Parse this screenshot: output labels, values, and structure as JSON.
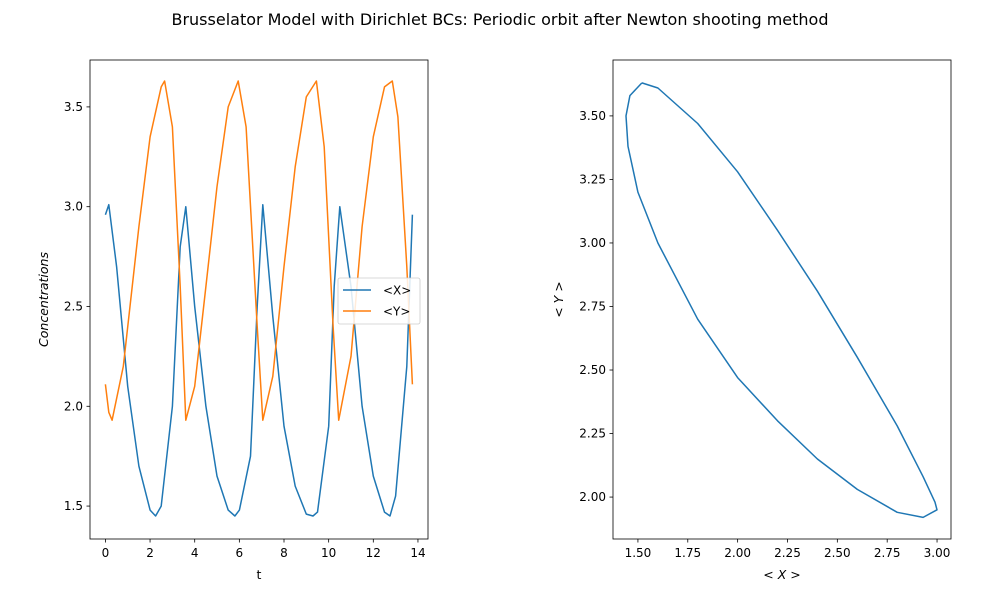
{
  "figure": {
    "suptitle": "Brusselator Model with Dirichlet BCs: Periodic orbit after Newton shooting method"
  },
  "colors": {
    "x_series": "#1f77b4",
    "y_series": "#ff7f0e",
    "axes": "#000000"
  },
  "chart_data": [
    {
      "type": "line",
      "title": "",
      "xlabel": "t",
      "ylabel": "Concentrations",
      "xlim": [
        -0.69,
        14.45
      ],
      "ylim": [
        1.335,
        3.735
      ],
      "xticks": [
        0,
        2,
        4,
        6,
        8,
        10,
        12,
        14
      ],
      "xtick_labels": [
        "0",
        "2",
        "4",
        "6",
        "8",
        "10",
        "12",
        "14"
      ],
      "yticks": [
        1.5,
        2.0,
        2.5,
        3.0,
        3.5
      ],
      "ytick_labels": [
        "1.5",
        "2.0",
        "2.5",
        "3.0",
        "3.5"
      ],
      "grid": false,
      "legend_placement": "center-right",
      "legend": [
        "<X>",
        "<Y>"
      ],
      "series": [
        {
          "name": "<X>",
          "color": "#1f77b4",
          "x": [
            0.0,
            0.15,
            0.5,
            1.0,
            1.5,
            2.0,
            2.25,
            2.5,
            3.0,
            3.35,
            3.6,
            4.0,
            4.5,
            5.0,
            5.5,
            5.8,
            6.0,
            6.5,
            6.8,
            7.05,
            7.5,
            8.0,
            8.5,
            9.0,
            9.3,
            9.5,
            10.0,
            10.25,
            10.5,
            11.0,
            11.5,
            12.0,
            12.5,
            12.75,
            13.0,
            13.5,
            13.75
          ],
          "y": [
            2.96,
            3.01,
            2.7,
            2.1,
            1.7,
            1.48,
            1.45,
            1.5,
            2.0,
            2.8,
            3.0,
            2.5,
            2.0,
            1.65,
            1.48,
            1.45,
            1.48,
            1.75,
            2.5,
            3.01,
            2.45,
            1.9,
            1.6,
            1.46,
            1.45,
            1.47,
            1.9,
            2.6,
            3.0,
            2.6,
            2.0,
            1.65,
            1.47,
            1.45,
            1.55,
            2.2,
            2.96
          ]
        },
        {
          "name": "<Y>",
          "color": "#ff7f0e",
          "x": [
            0.0,
            0.15,
            0.3,
            0.8,
            1.5,
            2.0,
            2.5,
            2.65,
            3.0,
            3.35,
            3.6,
            4.0,
            4.5,
            5.0,
            5.5,
            5.95,
            6.3,
            6.8,
            7.05,
            7.5,
            8.0,
            8.5,
            9.0,
            9.45,
            9.8,
            10.2,
            10.45,
            11.0,
            11.5,
            12.0,
            12.5,
            12.85,
            13.1,
            13.5,
            13.75
          ],
          "y": [
            2.11,
            1.97,
            1.93,
            2.2,
            2.9,
            3.35,
            3.6,
            3.63,
            3.4,
            2.6,
            1.93,
            2.1,
            2.6,
            3.1,
            3.5,
            3.63,
            3.4,
            2.4,
            1.93,
            2.15,
            2.7,
            3.2,
            3.55,
            3.63,
            3.3,
            2.4,
            1.93,
            2.25,
            2.9,
            3.35,
            3.6,
            3.63,
            3.45,
            2.7,
            2.11
          ]
        }
      ]
    },
    {
      "type": "line",
      "title": "",
      "xlabel": "< X >",
      "ylabel": "< Y >",
      "xlim": [
        1.375,
        3.07
      ],
      "ylim": [
        1.835,
        3.72
      ],
      "xticks": [
        1.5,
        1.75,
        2.0,
        2.25,
        2.5,
        2.75,
        3.0
      ],
      "xtick_labels": [
        "1.50",
        "1.75",
        "2.00",
        "2.25",
        "2.50",
        "2.75",
        "3.00"
      ],
      "yticks": [
        2.0,
        2.25,
        2.5,
        2.75,
        3.0,
        3.25,
        3.5
      ],
      "ytick_labels": [
        "2.00",
        "2.25",
        "2.50",
        "2.75",
        "3.00",
        "3.25",
        "3.50"
      ],
      "grid": false,
      "series": [
        {
          "color": "#1f77b4",
          "x": [
            1.52,
            1.6,
            1.8,
            2.0,
            2.2,
            2.4,
            2.6,
            2.8,
            2.93,
            2.99,
            3.0,
            2.93,
            2.8,
            2.6,
            2.4,
            2.2,
            2.0,
            1.8,
            1.6,
            1.5,
            1.45,
            1.44,
            1.46,
            1.52
          ],
          "y": [
            3.63,
            3.61,
            3.47,
            3.28,
            3.05,
            2.81,
            2.55,
            2.28,
            2.08,
            1.98,
            1.95,
            1.92,
            1.94,
            2.03,
            2.15,
            2.3,
            2.47,
            2.7,
            3.0,
            3.2,
            3.38,
            3.5,
            3.58,
            3.63
          ]
        }
      ]
    }
  ]
}
